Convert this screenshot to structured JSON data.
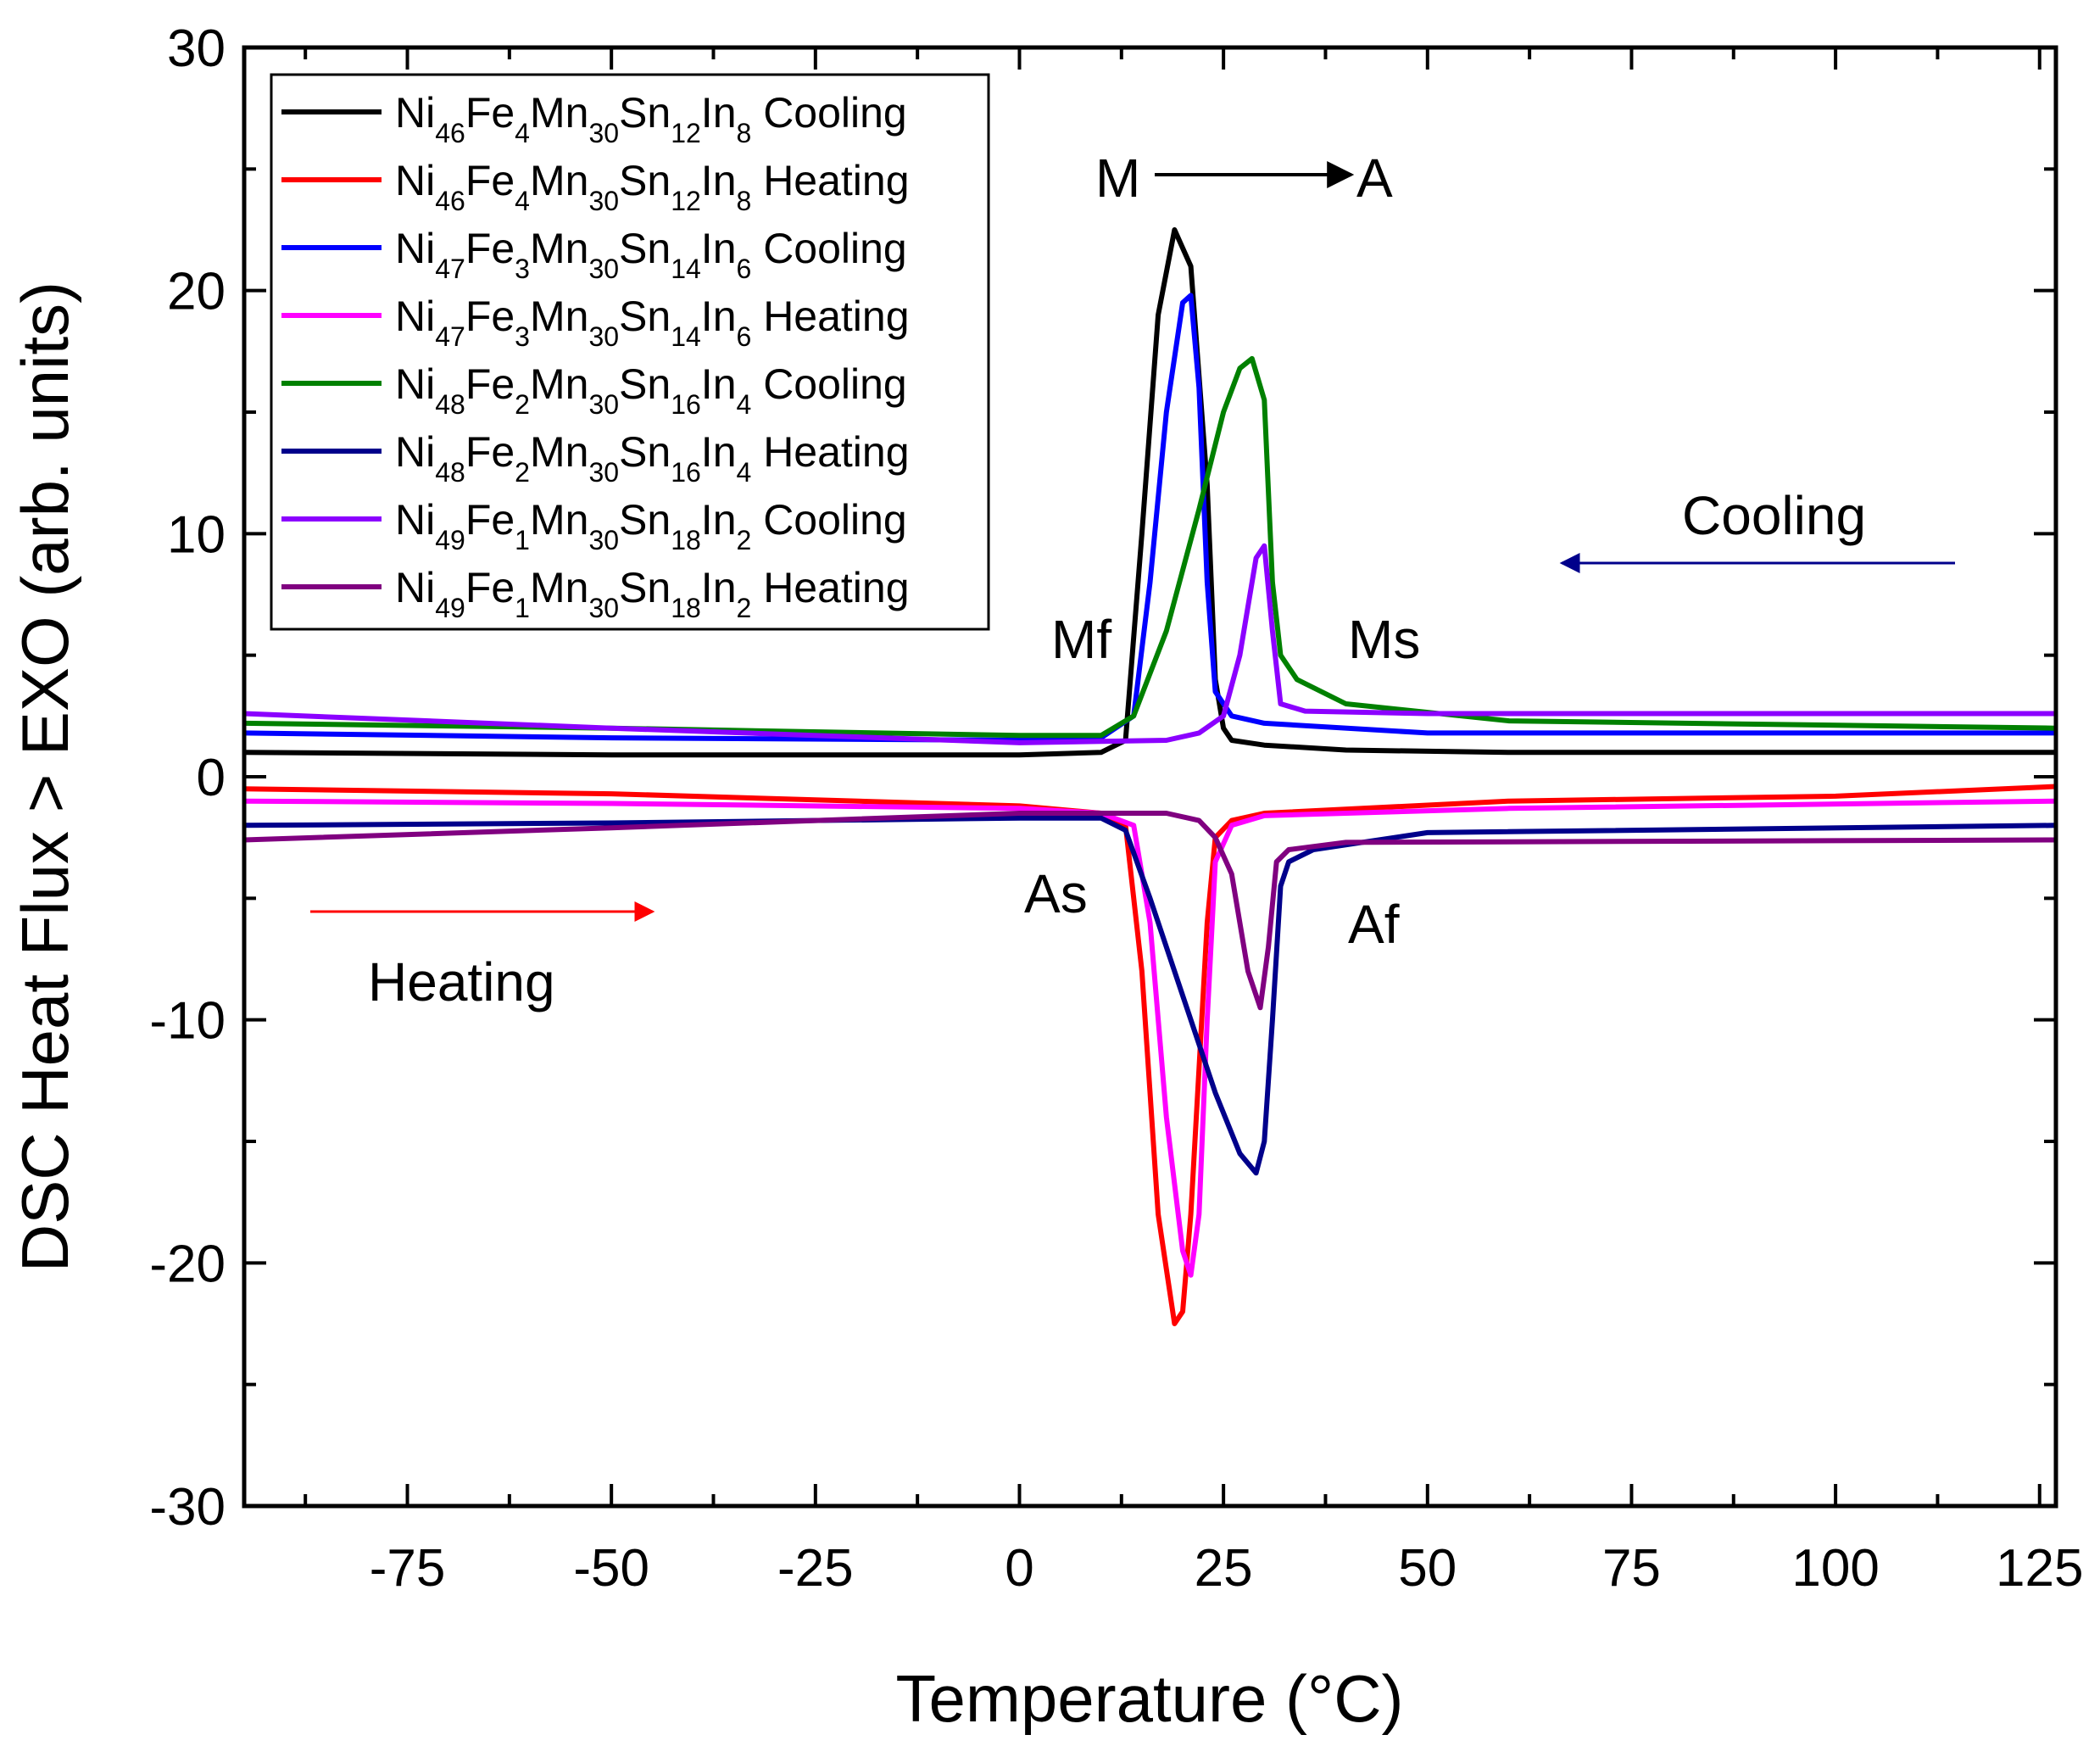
{
  "chart_data": {
    "type": "line",
    "title": "",
    "xlabel": "Temperature (°C)",
    "ylabel": "DSC Heat Flux > EXO (arb. units)",
    "xlim": [
      -95,
      127
    ],
    "ylim": [
      -30,
      30
    ],
    "xticks": [
      -75,
      -50,
      -25,
      0,
      25,
      50,
      75,
      100,
      125
    ],
    "yticks": [
      -30,
      -20,
      -10,
      0,
      10,
      20,
      30
    ],
    "legend_position": "top-left",
    "series": [
      {
        "name": "Ni46Fe4Mn30Sn12In8 Cooling",
        "color": "#000000",
        "legend_parts": [
          [
            "Ni",
            ""
          ],
          [
            "46",
            "s"
          ],
          [
            "Fe",
            ""
          ],
          [
            "4",
            "s"
          ],
          [
            "Mn",
            ""
          ],
          [
            "30",
            "s"
          ],
          [
            "Sn",
            ""
          ],
          [
            "12",
            "s"
          ],
          [
            "In",
            ""
          ],
          [
            "8",
            "s"
          ],
          [
            " Cooling",
            ""
          ]
        ],
        "x": [
          -95,
          -50,
          0,
          10,
          13,
          15,
          17,
          19,
          21,
          23,
          24,
          25,
          26,
          30,
          40,
          60,
          127
        ],
        "y": [
          1.0,
          0.9,
          0.9,
          1.0,
          1.5,
          10.0,
          19.0,
          22.5,
          21.0,
          12.0,
          4.0,
          2.0,
          1.5,
          1.3,
          1.1,
          1.0,
          1.0
        ]
      },
      {
        "name": "Ni46Fe4Mn30Sn12In8 Heating",
        "color": "#ff0000",
        "legend_parts": [
          [
            "Ni",
            ""
          ],
          [
            "46",
            "s"
          ],
          [
            "Fe",
            ""
          ],
          [
            "4",
            "s"
          ],
          [
            "Mn",
            ""
          ],
          [
            "30",
            "s"
          ],
          [
            "Sn",
            ""
          ],
          [
            "12",
            "s"
          ],
          [
            "In",
            ""
          ],
          [
            "8",
            "s"
          ],
          [
            " Heating",
            ""
          ]
        ],
        "x": [
          -95,
          -50,
          0,
          10,
          13,
          15,
          17,
          19,
          20,
          21,
          22,
          23,
          24,
          26,
          30,
          60,
          100,
          127
        ],
        "y": [
          -0.5,
          -0.7,
          -1.2,
          -1.5,
          -2.0,
          -8.0,
          -18.0,
          -22.5,
          -22.0,
          -18.0,
          -12.0,
          -6.0,
          -2.5,
          -1.8,
          -1.5,
          -1.0,
          -0.8,
          -0.4
        ]
      },
      {
        "name": "Ni47Fe3Mn30Sn14In6 Cooling",
        "color": "#0000ff",
        "legend_parts": [
          [
            "Ni",
            ""
          ],
          [
            "47",
            "s"
          ],
          [
            "Fe",
            ""
          ],
          [
            "3",
            "s"
          ],
          [
            "Mn",
            ""
          ],
          [
            "30",
            "s"
          ],
          [
            "Sn",
            ""
          ],
          [
            "14",
            "s"
          ],
          [
            "In",
            ""
          ],
          [
            "6",
            "s"
          ],
          [
            " Cooling",
            ""
          ]
        ],
        "x": [
          -95,
          -50,
          0,
          10,
          14,
          16,
          18,
          20,
          21,
          22,
          23,
          24,
          26,
          30,
          50,
          127
        ],
        "y": [
          1.8,
          1.6,
          1.5,
          1.6,
          2.5,
          8.0,
          15.0,
          19.5,
          19.8,
          16.0,
          8.0,
          3.5,
          2.5,
          2.2,
          1.8,
          1.8
        ]
      },
      {
        "name": "Ni47Fe3Mn30Sn14In6 Heating",
        "color": "#ff00ff",
        "legend_parts": [
          [
            "Ni",
            ""
          ],
          [
            "47",
            "s"
          ],
          [
            "Fe",
            ""
          ],
          [
            "3",
            "s"
          ],
          [
            "Mn",
            ""
          ],
          [
            "30",
            "s"
          ],
          [
            "Sn",
            ""
          ],
          [
            "14",
            "s"
          ],
          [
            "In",
            ""
          ],
          [
            "6",
            "s"
          ],
          [
            " Heating",
            ""
          ]
        ],
        "x": [
          -95,
          -50,
          0,
          10,
          14,
          16,
          18,
          20,
          21,
          22,
          23,
          24,
          26,
          30,
          60,
          127
        ],
        "y": [
          -1.0,
          -1.1,
          -1.3,
          -1.5,
          -2.0,
          -6.0,
          -14.0,
          -19.5,
          -20.5,
          -18.0,
          -10.0,
          -3.5,
          -2.0,
          -1.6,
          -1.3,
          -1.0
        ]
      },
      {
        "name": "Ni48Fe2Mn30Sn16In4 Cooling",
        "color": "#008000",
        "legend_parts": [
          [
            "Ni",
            ""
          ],
          [
            "48",
            "s"
          ],
          [
            "Fe",
            ""
          ],
          [
            "2",
            "s"
          ],
          [
            "Mn",
            ""
          ],
          [
            "30",
            "s"
          ],
          [
            "Sn",
            ""
          ],
          [
            "16",
            "s"
          ],
          [
            "In",
            ""
          ],
          [
            "4",
            "s"
          ],
          [
            " Cooling",
            ""
          ]
        ],
        "x": [
          -95,
          -50,
          0,
          10,
          14,
          18,
          22,
          25,
          27,
          28.5,
          30,
          31,
          32,
          34,
          40,
          60,
          127
        ],
        "y": [
          2.2,
          2.0,
          1.7,
          1.7,
          2.5,
          6.0,
          11.0,
          15.0,
          16.8,
          17.2,
          15.5,
          8.0,
          5.0,
          4.0,
          3.0,
          2.3,
          2.0
        ]
      },
      {
        "name": "Ni48Fe2Mn30Sn16In4 Heating",
        "color": "#00008b",
        "legend_parts": [
          [
            "Ni",
            ""
          ],
          [
            "48",
            "s"
          ],
          [
            "Fe",
            ""
          ],
          [
            "2",
            "s"
          ],
          [
            "Mn",
            ""
          ],
          [
            "30",
            "s"
          ],
          [
            "Sn",
            ""
          ],
          [
            "16",
            "s"
          ],
          [
            "In",
            ""
          ],
          [
            "4",
            "s"
          ],
          [
            " Heating",
            ""
          ]
        ],
        "x": [
          -95,
          -50,
          0,
          10,
          13,
          16,
          20,
          24,
          27,
          29,
          30,
          31,
          32,
          33,
          36,
          50,
          127
        ],
        "y": [
          -2.0,
          -1.9,
          -1.7,
          -1.7,
          -2.2,
          -5.0,
          -9.0,
          -13.0,
          -15.5,
          -16.3,
          -15.0,
          -10.0,
          -4.5,
          -3.5,
          -3.0,
          -2.3,
          -2.0
        ]
      },
      {
        "name": "Ni49Fe1Mn30Sn18In2 Cooling",
        "color": "#8b00ff",
        "legend_parts": [
          [
            "Ni",
            ""
          ],
          [
            "49",
            "s"
          ],
          [
            "Fe",
            ""
          ],
          [
            "1",
            "s"
          ],
          [
            "Mn",
            ""
          ],
          [
            "30",
            "s"
          ],
          [
            "Sn",
            ""
          ],
          [
            "18",
            "s"
          ],
          [
            "In",
            ""
          ],
          [
            "2",
            "s"
          ],
          [
            " Cooling",
            ""
          ]
        ],
        "x": [
          -95,
          -50,
          0,
          18,
          22,
          25,
          27,
          29,
          30,
          31,
          32,
          35,
          50,
          127
        ],
        "y": [
          2.6,
          2.0,
          1.4,
          1.5,
          1.8,
          2.5,
          5.0,
          9.0,
          9.5,
          6.0,
          3.0,
          2.7,
          2.6,
          2.6
        ]
      },
      {
        "name": "Ni49Fe1Mn30Sn18In2 Heating",
        "color": "#800080",
        "legend_parts": [
          [
            "Ni",
            ""
          ],
          [
            "49",
            "s"
          ],
          [
            "Fe",
            ""
          ],
          [
            "1",
            "s"
          ],
          [
            "Mn",
            ""
          ],
          [
            "30",
            "s"
          ],
          [
            "Sn",
            ""
          ],
          [
            "18",
            "s"
          ],
          [
            "In",
            ""
          ],
          [
            "2",
            "s"
          ],
          [
            " Heating",
            ""
          ]
        ],
        "x": [
          -95,
          -50,
          0,
          18,
          22,
          24,
          26,
          28,
          29.5,
          30.5,
          31.5,
          33,
          40,
          127
        ],
        "y": [
          -2.6,
          -2.1,
          -1.5,
          -1.5,
          -1.8,
          -2.5,
          -4.0,
          -8.0,
          -9.5,
          -7.0,
          -3.5,
          -3.0,
          -2.7,
          -2.6
        ]
      }
    ],
    "annotations": {
      "m_to_a_m": "M",
      "m_to_a_a": "A",
      "mf": "Mf",
      "ms": "Ms",
      "as": "As",
      "af": "Af",
      "cooling": "Cooling",
      "heating": "Heating"
    },
    "annotation_colors": {
      "cooling": "#00008b",
      "heating": "#ff0000",
      "default": "#000000"
    }
  }
}
